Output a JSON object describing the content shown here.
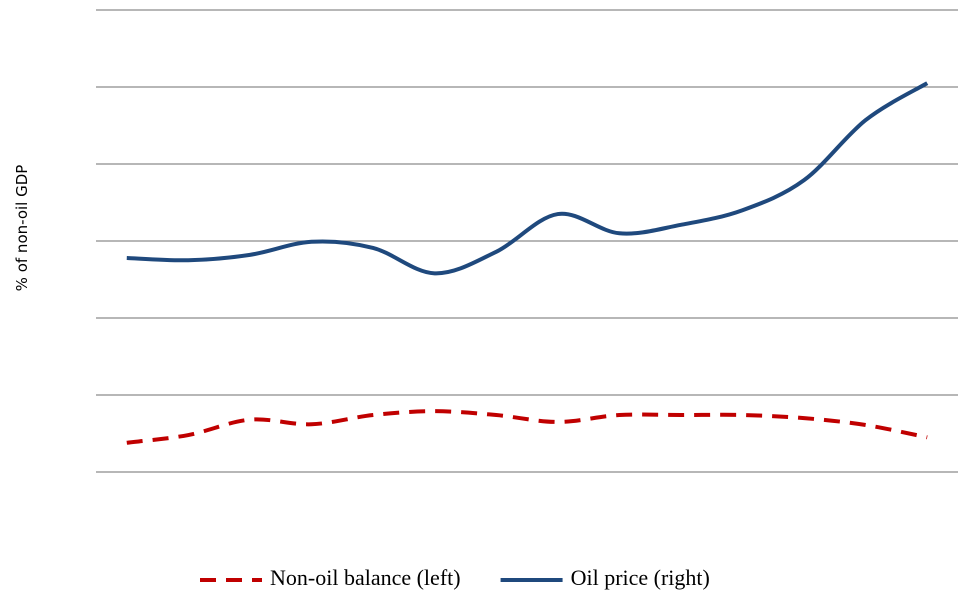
{
  "chart_data": {
    "type": "line",
    "y_label": "% of non-oil GDP",
    "categories": [
      null,
      null,
      null,
      null,
      null,
      null,
      null,
      null,
      null,
      null,
      null,
      null,
      null,
      null
    ],
    "series": [
      {
        "name": "Non-oil balance (left)",
        "color": "#c00000",
        "dash": true,
        "values": [
          0.38,
          0.48,
          0.68,
          0.62,
          0.74,
          0.79,
          0.74,
          0.65,
          0.74,
          0.74,
          0.74,
          0.7,
          0.61,
          0.45
        ]
      },
      {
        "name": "Oil price (right)",
        "color": "#1f497d",
        "dash": false,
        "values": [
          2.78,
          2.75,
          2.82,
          2.99,
          2.91,
          2.58,
          2.86,
          3.35,
          3.1,
          3.21,
          3.4,
          3.79,
          4.57,
          5.05
        ]
      }
    ],
    "ylim": [
      0,
      6
    ],
    "yticks": [
      0,
      1,
      2,
      3,
      4,
      5,
      6
    ],
    "grid": true,
    "legend": "bottom"
  }
}
